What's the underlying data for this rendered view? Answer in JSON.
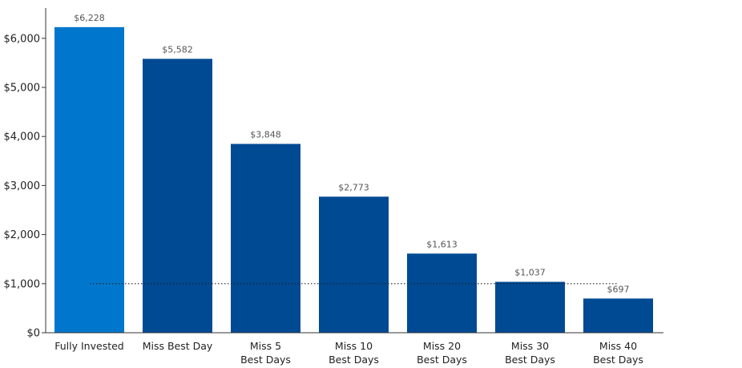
{
  "colors": {
    "highlight": "#0077cc",
    "primary": "#004a94",
    "axis": "#333333",
    "reference_line": "#222222"
  },
  "chart_data": {
    "type": "bar",
    "categories": [
      [
        "Fully Invested"
      ],
      [
        "Miss Best Day"
      ],
      [
        "Miss 5",
        "Best Days"
      ],
      [
        "Miss 10",
        "Best Days"
      ],
      [
        "Miss 20",
        "Best Days"
      ],
      [
        "Miss 30",
        "Best Days"
      ],
      [
        "Miss 40",
        "Best Days"
      ]
    ],
    "values": [
      6228,
      5582,
      3848,
      2773,
      1613,
      1037,
      697
    ],
    "value_labels": [
      "$6,228",
      "$5,582",
      "$3,848",
      "$2,773",
      "$1,613",
      "$1,037",
      "$697"
    ],
    "highlight_index": 0,
    "title": "",
    "xlabel": "",
    "ylabel": "",
    "ylim": [
      0,
      6300
    ],
    "yticks": [
      0,
      1000,
      2000,
      3000,
      4000,
      5000,
      6000
    ],
    "ytick_labels": [
      "$0",
      "$1,000",
      "$2,000",
      "$3,000",
      "$4,000",
      "$5,000",
      "$6,000"
    ],
    "reference_line": {
      "value": 1000,
      "style": "dotted"
    },
    "grid": false,
    "legend": "none"
  }
}
